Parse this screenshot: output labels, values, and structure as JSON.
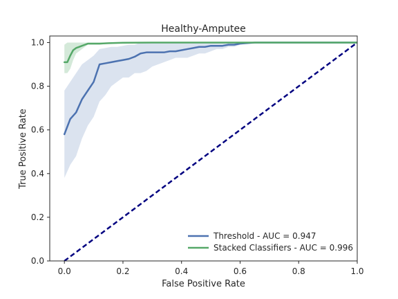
{
  "chart_data": {
    "type": "line",
    "title": "Healthy-Amputee",
    "xlabel": "False Positive Rate",
    "ylabel": "True Positive Rate",
    "xlim": [
      -0.05,
      1.0
    ],
    "ylim": [
      0.0,
      1.03
    ],
    "xticks": [
      "0.0",
      "0.2",
      "0.4",
      "0.6",
      "0.8",
      "1.0"
    ],
    "yticks": [
      "0.0",
      "0.2",
      "0.4",
      "0.6",
      "0.8",
      "1.0"
    ],
    "grid": false,
    "legend_position": "lower-right",
    "series": [
      {
        "name": "Threshold - AUC = 0.947",
        "color": "#4c72b0",
        "x": [
          0.0,
          0.02,
          0.04,
          0.06,
          0.08,
          0.1,
          0.12,
          0.14,
          0.16,
          0.18,
          0.2,
          0.22,
          0.24,
          0.26,
          0.28,
          0.3,
          0.32,
          0.34,
          0.36,
          0.38,
          0.4,
          0.42,
          0.44,
          0.46,
          0.48,
          0.5,
          0.52,
          0.54,
          0.56,
          0.58,
          0.6,
          0.65,
          0.7,
          0.75,
          0.8,
          0.9,
          1.0
        ],
        "y": [
          0.58,
          0.65,
          0.68,
          0.74,
          0.78,
          0.82,
          0.9,
          0.905,
          0.91,
          0.915,
          0.92,
          0.925,
          0.935,
          0.95,
          0.955,
          0.955,
          0.955,
          0.955,
          0.96,
          0.96,
          0.965,
          0.97,
          0.975,
          0.98,
          0.98,
          0.985,
          0.985,
          0.985,
          0.99,
          0.99,
          0.995,
          1.0,
          1.0,
          1.0,
          1.0,
          1.0,
          1.0
        ],
        "band_upper": [
          0.78,
          0.82,
          0.86,
          0.9,
          0.92,
          0.94,
          0.97,
          0.975,
          0.98,
          0.98,
          0.985,
          0.99,
          0.99,
          1.0,
          1.0,
          1.0,
          1.0,
          1.0,
          1.0,
          1.0,
          1.0,
          1.0,
          1.0,
          1.0,
          1.0,
          1.0,
          1.0,
          1.0,
          1.0,
          1.0,
          1.0,
          1.0,
          1.0,
          1.0,
          1.0,
          1.0,
          1.0
        ],
        "band_lower": [
          0.38,
          0.44,
          0.48,
          0.56,
          0.62,
          0.66,
          0.73,
          0.76,
          0.8,
          0.82,
          0.84,
          0.84,
          0.86,
          0.86,
          0.87,
          0.89,
          0.9,
          0.91,
          0.92,
          0.93,
          0.93,
          0.93,
          0.94,
          0.95,
          0.95,
          0.96,
          0.97,
          0.97,
          0.98,
          0.98,
          0.99,
          1.0,
          1.0,
          1.0,
          1.0,
          1.0,
          1.0
        ]
      },
      {
        "name": "Stacked Classifiers - AUC = 0.996",
        "color": "#55a868",
        "x": [
          0.0,
          0.01,
          0.02,
          0.03,
          0.04,
          0.05,
          0.06,
          0.07,
          0.08,
          0.1,
          0.12,
          0.15,
          0.2,
          0.3,
          0.4,
          0.5,
          0.6,
          0.7,
          0.8,
          0.9,
          1.0
        ],
        "y": [
          0.91,
          0.91,
          0.94,
          0.965,
          0.975,
          0.98,
          0.985,
          0.99,
          0.995,
          0.995,
          0.995,
          0.997,
          0.999,
          1.0,
          1.0,
          1.0,
          1.0,
          1.0,
          1.0,
          1.0,
          1.0
        ],
        "band_upper": [
          0.99,
          1.0,
          1.0,
          1.0,
          1.0,
          1.0,
          1.0,
          1.0,
          1.0,
          1.0,
          1.0,
          1.0,
          1.0,
          1.0,
          1.0,
          1.0,
          1.0,
          1.0,
          1.0,
          1.0,
          1.0
        ],
        "band_lower": [
          0.86,
          0.86,
          0.88,
          0.92,
          0.95,
          0.96,
          0.97,
          0.98,
          0.99,
          0.99,
          0.99,
          0.995,
          0.998,
          1.0,
          1.0,
          1.0,
          1.0,
          1.0,
          1.0,
          1.0,
          1.0
        ]
      }
    ],
    "reference_line": {
      "color": "#000080",
      "x": [
        0.0,
        1.0
      ],
      "y": [
        0.0,
        1.0
      ]
    }
  }
}
